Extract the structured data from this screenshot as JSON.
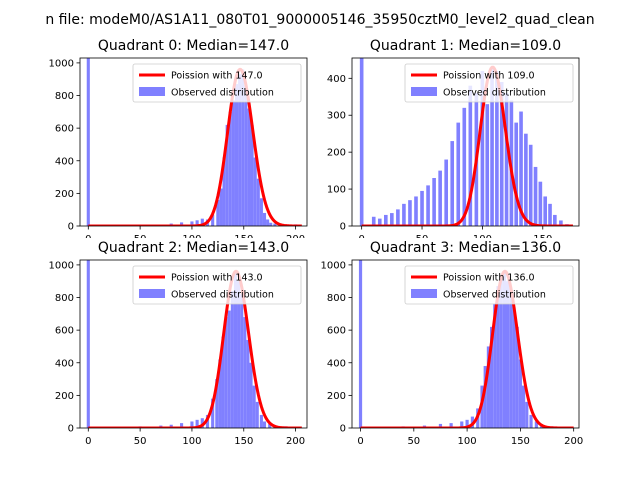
{
  "suptitle": "n file: modeM0/AS1A11_080T01_9000005146_35950cztM0_level2_quad_clean",
  "colors": {
    "observed": "#8080ff",
    "poisson": "#ff0000"
  },
  "chart_data": [
    {
      "type": "bar+line",
      "title": "Quadrant 0: Median=147.0",
      "median": 147.0,
      "xlim": [
        -8,
        211
      ],
      "ylim": [
        0,
        1030
      ],
      "xticks": [
        0,
        50,
        100,
        150,
        200
      ],
      "yticks": [
        0,
        200,
        400,
        600,
        800,
        1000
      ],
      "xticklabels": [
        "0",
        "50",
        "100",
        "150",
        "200"
      ],
      "yticklabels": [
        "0",
        "200",
        "400",
        "600",
        "800",
        "1000"
      ],
      "legend": {
        "placement": "top-right",
        "line_label": "Poission with 147.0",
        "bar_label": "Observed distribution"
      },
      "spike": {
        "x": 0,
        "y": 1050
      },
      "bins": [
        {
          "x": 80,
          "y": 15
        },
        {
          "x": 90,
          "y": 22
        },
        {
          "x": 100,
          "y": 28
        },
        {
          "x": 105,
          "y": 35
        },
        {
          "x": 110,
          "y": 45
        },
        {
          "x": 115,
          "y": 40
        },
        {
          "x": 120,
          "y": 70
        },
        {
          "x": 125,
          "y": 160
        },
        {
          "x": 128,
          "y": 230
        },
        {
          "x": 131,
          "y": 420
        },
        {
          "x": 134,
          "y": 620
        },
        {
          "x": 137,
          "y": 700
        },
        {
          "x": 140,
          "y": 770
        },
        {
          "x": 143,
          "y": 870
        },
        {
          "x": 146,
          "y": 930
        },
        {
          "x": 149,
          "y": 960
        },
        {
          "x": 152,
          "y": 860
        },
        {
          "x": 155,
          "y": 720
        },
        {
          "x": 158,
          "y": 620
        },
        {
          "x": 161,
          "y": 420
        },
        {
          "x": 164,
          "y": 290
        },
        {
          "x": 167,
          "y": 170
        },
        {
          "x": 170,
          "y": 80
        },
        {
          "x": 173,
          "y": 40
        },
        {
          "x": 176,
          "y": 20
        },
        {
          "x": 180,
          "y": 15
        },
        {
          "x": 190,
          "y": 10
        },
        {
          "x": 200,
          "y": 10
        }
      ]
    },
    {
      "type": "bar+line",
      "title": "Quadrant 1: Median=109.0",
      "median": 109.0,
      "xlim": [
        -8,
        180
      ],
      "ylim": [
        0,
        455
      ],
      "xticks": [
        0,
        50,
        100,
        150
      ],
      "yticks": [
        0,
        100,
        200,
        300,
        400
      ],
      "xticklabels": [
        "0",
        "50",
        "100",
        "150"
      ],
      "yticklabels": [
        "0",
        "100",
        "200",
        "300",
        "400"
      ],
      "legend": {
        "placement": "top-right",
        "line_label": "Poission with 109.0",
        "bar_label": "Observed distribution"
      },
      "spike": {
        "x": 0,
        "y": 460
      },
      "bins": [
        {
          "x": 10,
          "y": 25
        },
        {
          "x": 15,
          "y": 20
        },
        {
          "x": 20,
          "y": 30
        },
        {
          "x": 25,
          "y": 35
        },
        {
          "x": 30,
          "y": 45
        },
        {
          "x": 35,
          "y": 60
        },
        {
          "x": 40,
          "y": 70
        },
        {
          "x": 45,
          "y": 80
        },
        {
          "x": 50,
          "y": 95
        },
        {
          "x": 55,
          "y": 110
        },
        {
          "x": 60,
          "y": 130
        },
        {
          "x": 65,
          "y": 150
        },
        {
          "x": 70,
          "y": 180
        },
        {
          "x": 75,
          "y": 230
        },
        {
          "x": 80,
          "y": 280
        },
        {
          "x": 85,
          "y": 320
        },
        {
          "x": 90,
          "y": 380
        },
        {
          "x": 95,
          "y": 360
        },
        {
          "x": 100,
          "y": 420
        },
        {
          "x": 104,
          "y": 330
        },
        {
          "x": 108,
          "y": 430
        },
        {
          "x": 112,
          "y": 420
        },
        {
          "x": 116,
          "y": 390
        },
        {
          "x": 120,
          "y": 360
        },
        {
          "x": 124,
          "y": 340
        },
        {
          "x": 128,
          "y": 280
        },
        {
          "x": 132,
          "y": 310
        },
        {
          "x": 136,
          "y": 250
        },
        {
          "x": 140,
          "y": 220
        },
        {
          "x": 144,
          "y": 160
        },
        {
          "x": 148,
          "y": 120
        },
        {
          "x": 152,
          "y": 80
        },
        {
          "x": 156,
          "y": 60
        },
        {
          "x": 160,
          "y": 30
        },
        {
          "x": 165,
          "y": 15
        },
        {
          "x": 170,
          "y": 5
        }
      ]
    },
    {
      "type": "bar+line",
      "title": "Quadrant 2: Median=143.0",
      "median": 143.0,
      "xlim": [
        -8,
        211
      ],
      "ylim": [
        0,
        1030
      ],
      "xticks": [
        0,
        50,
        100,
        150,
        200
      ],
      "yticks": [
        0,
        200,
        400,
        600,
        800,
        1000
      ],
      "xticklabels": [
        "0",
        "50",
        "100",
        "150",
        "200"
      ],
      "yticklabels": [
        "0",
        "200",
        "400",
        "600",
        "800",
        "1000"
      ],
      "legend": {
        "placement": "top-right",
        "line_label": "Poission with 143.0",
        "bar_label": "Observed distribution"
      },
      "spike": {
        "x": 0,
        "y": 1050
      },
      "bins": [
        {
          "x": 50,
          "y": 10
        },
        {
          "x": 70,
          "y": 15
        },
        {
          "x": 80,
          "y": 20
        },
        {
          "x": 90,
          "y": 30
        },
        {
          "x": 100,
          "y": 40
        },
        {
          "x": 105,
          "y": 50
        },
        {
          "x": 110,
          "y": 60
        },
        {
          "x": 115,
          "y": 80
        },
        {
          "x": 120,
          "y": 180
        },
        {
          "x": 124,
          "y": 300
        },
        {
          "x": 127,
          "y": 420
        },
        {
          "x": 130,
          "y": 560
        },
        {
          "x": 133,
          "y": 680
        },
        {
          "x": 136,
          "y": 720
        },
        {
          "x": 139,
          "y": 840
        },
        {
          "x": 142,
          "y": 960
        },
        {
          "x": 145,
          "y": 900
        },
        {
          "x": 148,
          "y": 820
        },
        {
          "x": 151,
          "y": 680
        },
        {
          "x": 154,
          "y": 540
        },
        {
          "x": 157,
          "y": 400
        },
        {
          "x": 160,
          "y": 260
        },
        {
          "x": 163,
          "y": 160
        },
        {
          "x": 167,
          "y": 80
        },
        {
          "x": 170,
          "y": 40
        },
        {
          "x": 175,
          "y": 25
        },
        {
          "x": 180,
          "y": 15
        },
        {
          "x": 190,
          "y": 10
        }
      ]
    },
    {
      "type": "bar+line",
      "title": "Quadrant 3: Median=136.0",
      "median": 136.0,
      "xlim": [
        -8,
        205
      ],
      "ylim": [
        0,
        1030
      ],
      "xticks": [
        0,
        50,
        100,
        150,
        200
      ],
      "yticks": [
        0,
        200,
        400,
        600,
        800,
        1000
      ],
      "xticklabels": [
        "0",
        "50",
        "100",
        "150",
        "200"
      ],
      "yticklabels": [
        "0",
        "200",
        "400",
        "600",
        "800",
        "1000"
      ],
      "legend": {
        "placement": "top-right",
        "line_label": "Poission with 136.0",
        "bar_label": "Observed distribution"
      },
      "spike": {
        "x": 0,
        "y": 1050
      },
      "bins": [
        {
          "x": 40,
          "y": 10
        },
        {
          "x": 60,
          "y": 15
        },
        {
          "x": 75,
          "y": 25
        },
        {
          "x": 85,
          "y": 30
        },
        {
          "x": 95,
          "y": 40
        },
        {
          "x": 100,
          "y": 50
        },
        {
          "x": 105,
          "y": 70
        },
        {
          "x": 110,
          "y": 120
        },
        {
          "x": 114,
          "y": 260
        },
        {
          "x": 117,
          "y": 380
        },
        {
          "x": 120,
          "y": 500
        },
        {
          "x": 123,
          "y": 620
        },
        {
          "x": 126,
          "y": 760
        },
        {
          "x": 129,
          "y": 870
        },
        {
          "x": 132,
          "y": 930
        },
        {
          "x": 135,
          "y": 960
        },
        {
          "x": 138,
          "y": 900
        },
        {
          "x": 141,
          "y": 860
        },
        {
          "x": 144,
          "y": 740
        },
        {
          "x": 147,
          "y": 620
        },
        {
          "x": 150,
          "y": 420
        },
        {
          "x": 153,
          "y": 260
        },
        {
          "x": 156,
          "y": 160
        },
        {
          "x": 160,
          "y": 80
        },
        {
          "x": 165,
          "y": 40
        },
        {
          "x": 170,
          "y": 20
        },
        {
          "x": 180,
          "y": 10
        }
      ]
    }
  ]
}
